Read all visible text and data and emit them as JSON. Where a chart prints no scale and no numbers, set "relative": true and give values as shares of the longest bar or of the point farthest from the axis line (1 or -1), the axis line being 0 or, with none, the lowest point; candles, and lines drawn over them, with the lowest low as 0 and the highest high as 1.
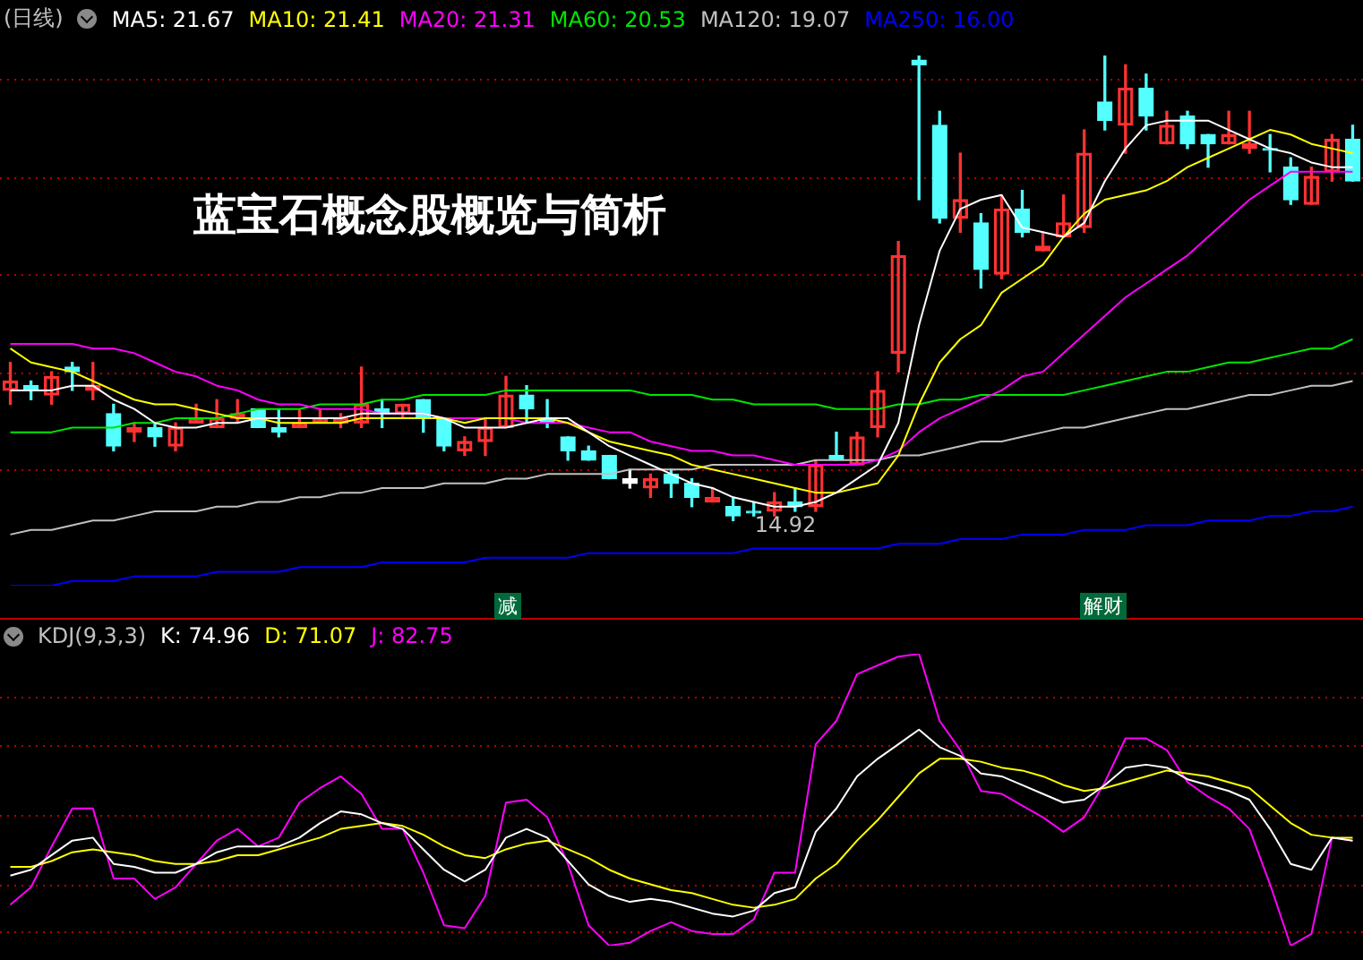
{
  "chart_data": [
    {
      "type": "candlestick",
      "title": "蓝宝石概念股概览与简析",
      "subtitle": "(日线)",
      "relative": true,
      "legend": "top left",
      "categories": [
        null,
        null,
        null,
        null,
        null,
        null,
        null,
        null,
        null,
        null,
        null,
        null,
        null,
        null,
        null,
        null,
        null,
        null,
        null,
        null,
        null,
        null,
        null,
        null,
        null,
        null,
        null,
        null,
        null,
        null,
        null,
        null,
        null,
        null,
        null,
        null,
        null,
        null,
        null,
        null,
        null,
        null,
        null,
        null,
        null,
        null,
        null,
        null,
        null,
        null,
        null,
        null,
        null,
        null,
        null,
        null,
        null,
        null,
        null,
        null,
        null,
        null,
        null,
        null,
        null,
        null
      ],
      "ohlc": [
        [
          0.28,
          0.34,
          0.25,
          0.3
        ],
        [
          0.29,
          0.3,
          0.26,
          0.28
        ],
        [
          0.27,
          0.32,
          0.25,
          0.31
        ],
        [
          0.33,
          0.34,
          0.28,
          0.32
        ],
        [
          0.28,
          0.34,
          0.26,
          0.29
        ],
        [
          0.23,
          0.25,
          0.15,
          0.16
        ],
        [
          0.19,
          0.21,
          0.17,
          0.2
        ],
        [
          0.2,
          0.21,
          0.16,
          0.18
        ],
        [
          0.16,
          0.21,
          0.15,
          0.2
        ],
        [
          0.21,
          0.25,
          0.21,
          0.22
        ],
        [
          0.2,
          0.26,
          0.2,
          0.22
        ],
        [
          0.22,
          0.26,
          0.21,
          0.23
        ],
        [
          0.24,
          0.24,
          0.2,
          0.2
        ],
        [
          0.2,
          0.24,
          0.18,
          0.19
        ],
        [
          0.2,
          0.24,
          0.2,
          0.21
        ],
        [
          0.21,
          0.24,
          0.21,
          0.22
        ],
        [
          0.21,
          0.23,
          0.2,
          0.22
        ],
        [
          0.21,
          0.33,
          0.2,
          0.25
        ],
        [
          0.24,
          0.26,
          0.2,
          0.23
        ],
        [
          0.23,
          0.25,
          0.22,
          0.25
        ],
        [
          0.26,
          0.26,
          0.19,
          0.22
        ],
        [
          0.22,
          0.22,
          0.15,
          0.16
        ],
        [
          0.15,
          0.18,
          0.14,
          0.17
        ],
        [
          0.17,
          0.22,
          0.14,
          0.2
        ],
        [
          0.2,
          0.31,
          0.2,
          0.27
        ],
        [
          0.27,
          0.29,
          0.21,
          0.24
        ],
        [
          0.22,
          0.26,
          0.2,
          0.21
        ],
        [
          0.18,
          0.18,
          0.13,
          0.15
        ],
        [
          0.15,
          0.16,
          0.13,
          0.13
        ],
        [
          0.14,
          0.14,
          0.09,
          0.09
        ],
        [
          0.09,
          0.11,
          0.07,
          0.08
        ],
        [
          0.07,
          0.1,
          0.05,
          0.09
        ],
        [
          0.1,
          0.11,
          0.05,
          0.08
        ],
        [
          0.08,
          0.09,
          0.03,
          0.05
        ],
        [
          0.04,
          0.07,
          0.04,
          0.05
        ],
        [
          0.03,
          0.05,
          0,
          0.01
        ],
        [
          0.02,
          0.04,
          0.01,
          0.02
        ],
        [
          0.02,
          0.06,
          0.01,
          0.04
        ],
        [
          0.04,
          0.07,
          0.02,
          0.03
        ],
        [
          0.03,
          0.13,
          0.02,
          0.12
        ],
        [
          0.14,
          0.19,
          0.13,
          0.13
        ],
        [
          0.12,
          0.19,
          0.12,
          0.18
        ],
        [
          0.2,
          0.32,
          0.18,
          0.28
        ],
        [
          0.36,
          0.6,
          0.32,
          0.57
        ],
        [
          0.99,
          1,
          0.69,
          0.98
        ],
        [
          0.85,
          0.88,
          0.64,
          0.65
        ],
        [
          0.65,
          0.79,
          0.62,
          0.69
        ],
        [
          0.64,
          0.66,
          0.5,
          0.54
        ],
        [
          0.53,
          0.7,
          0.52,
          0.67
        ],
        [
          0.67,
          0.71,
          0.61,
          0.62
        ],
        [
          0.58,
          0.62,
          0.58,
          0.59
        ],
        [
          0.61,
          0.7,
          0.61,
          0.64
        ],
        [
          0.63,
          0.84,
          0.62,
          0.79
        ],
        [
          0.9,
          1,
          0.84,
          0.86
        ],
        [
          0.85,
          0.98,
          0.79,
          0.93
        ],
        [
          0.93,
          0.96,
          0.84,
          0.87
        ],
        [
          0.81,
          0.88,
          0.81,
          0.85
        ],
        [
          0.87,
          0.88,
          0.8,
          0.81
        ],
        [
          0.83,
          0.83,
          0.76,
          0.81
        ],
        [
          0.81,
          0.88,
          0.81,
          0.83
        ],
        [
          0.8,
          0.88,
          0.79,
          0.81
        ],
        [
          0.8,
          0.83,
          0.75,
          0.8
        ],
        [
          0.76,
          0.78,
          0.68,
          0.69
        ],
        [
          0.68,
          0.76,
          0.68,
          0.74
        ],
        [
          0.75,
          0.83,
          0.73,
          0.82
        ],
        [
          0.82,
          0.85,
          0.73,
          0.73
        ]
      ],
      "colors": [
        "#ff3232",
        "#54ffff",
        "#ff3232",
        "#54ffff",
        "#ff3232",
        "#54ffff",
        "#ff3232",
        "#54ffff",
        "#ff3232",
        "#ff3232",
        "#ff3232",
        "#ff3232",
        "#54ffff",
        "#54ffff",
        "#ff3232",
        "#ff3232",
        "#ff3232",
        "#ff3232",
        "#54ffff",
        "#ff3232",
        "#54ffff",
        "#54ffff",
        "#ff3232",
        "#ff3232",
        "#ff3232",
        "#54ffff",
        "#54ffff",
        "#54ffff",
        "#54ffff",
        "#54ffff",
        "#ffffff",
        "#ff3232",
        "#54ffff",
        "#54ffff",
        "#ff3232",
        "#54ffff",
        "#54ffff",
        "#ff3232",
        "#54ffff",
        "#ff3232",
        "#54ffff",
        "#ff3232",
        "#ff3232",
        "#ff3232",
        "#54ffff",
        "#54ffff",
        "#ff3232",
        "#54ffff",
        "#ff3232",
        "#54ffff",
        "#ff3232",
        "#ff3232",
        "#ff3232",
        "#54ffff",
        "#ff3232",
        "#54ffff",
        "#ff3232",
        "#54ffff",
        "#54ffff",
        "#ff3232",
        "#ff3232",
        "#54ffff",
        "#54ffff",
        "#ff3232",
        "#ff3232",
        "#54ffff"
      ],
      "series": [
        {
          "type": "line",
          "name": "MA5: 21.67",
          "color": "#ffffff",
          "values": [
            0.28,
            0.28,
            0.28,
            0.29,
            0.29,
            0.26,
            0.24,
            0.21,
            0.2,
            0.2,
            0.21,
            0.21,
            0.22,
            0.22,
            0.22,
            0.22,
            0.22,
            0.23,
            0.23,
            0.23,
            0.23,
            0.22,
            0.2,
            0.2,
            0.2,
            0.21,
            0.22,
            0.22,
            0.19,
            0.16,
            0.14,
            0.12,
            0.1,
            0.08,
            0.07,
            0.05,
            0.04,
            0.03,
            0.03,
            0.04,
            0.06,
            0.09,
            0.12,
            0.21,
            0.42,
            0.58,
            0.67,
            0.69,
            0.7,
            0.63,
            0.62,
            0.61,
            0.64,
            0.73,
            0.8,
            0.85,
            0.86,
            0.86,
            0.86,
            0.84,
            0.82,
            0.8,
            0.79,
            0.77,
            0.76,
            0.76
          ]
        },
        {
          "type": "line",
          "name": "MA10: 21.41",
          "color": "#ffff00",
          "values": [
            0.37,
            0.34,
            0.33,
            0.32,
            0.3,
            0.28,
            0.26,
            0.25,
            0.25,
            0.24,
            0.23,
            0.22,
            0.22,
            0.21,
            0.21,
            0.21,
            0.21,
            0.22,
            0.22,
            0.22,
            0.22,
            0.22,
            0.21,
            0.22,
            0.22,
            0.22,
            0.22,
            0.21,
            0.19,
            0.17,
            0.16,
            0.15,
            0.14,
            0.12,
            0.11,
            0.1,
            0.09,
            0.08,
            0.07,
            0.06,
            0.06,
            0.07,
            0.08,
            0.14,
            0.25,
            0.34,
            0.39,
            0.42,
            0.49,
            0.52,
            0.55,
            0.61,
            0.66,
            0.69,
            0.7,
            0.71,
            0.73,
            0.76,
            0.78,
            0.8,
            0.82,
            0.84,
            0.83,
            0.81,
            0.8,
            0.79
          ]
        },
        {
          "type": "line",
          "name": "MA20: 21.31",
          "color": "#ff00ff",
          "values": [
            0.38,
            0.38,
            0.38,
            0.38,
            0.37,
            0.37,
            0.36,
            0.34,
            0.32,
            0.31,
            0.29,
            0.28,
            0.26,
            0.25,
            0.25,
            0.24,
            0.24,
            0.24,
            0.23,
            0.23,
            0.23,
            0.22,
            0.22,
            0.22,
            0.22,
            0.21,
            0.21,
            0.21,
            0.2,
            0.19,
            0.19,
            0.17,
            0.16,
            0.15,
            0.15,
            0.14,
            0.14,
            0.13,
            0.12,
            0.12,
            0.12,
            0.12,
            0.13,
            0.15,
            0.19,
            0.22,
            0.24,
            0.26,
            0.28,
            0.31,
            0.32,
            0.36,
            0.4,
            0.44,
            0.48,
            0.51,
            0.54,
            0.57,
            0.61,
            0.65,
            0.69,
            0.72,
            0.75,
            0.75,
            0.75,
            0.75
          ]
        },
        {
          "type": "line",
          "name": "MA60: 20.53",
          "color": "#00e600",
          "values": [
            0.19,
            0.19,
            0.19,
            0.2,
            0.2,
            0.2,
            0.21,
            0.21,
            0.22,
            0.22,
            0.22,
            0.23,
            0.24,
            0.24,
            0.24,
            0.25,
            0.25,
            0.25,
            0.26,
            0.26,
            0.27,
            0.27,
            0.27,
            0.27,
            0.28,
            0.28,
            0.28,
            0.28,
            0.28,
            0.28,
            0.28,
            0.27,
            0.27,
            0.27,
            0.26,
            0.26,
            0.25,
            0.25,
            0.25,
            0.25,
            0.24,
            0.24,
            0.24,
            0.25,
            0.25,
            0.26,
            0.26,
            0.27,
            0.27,
            0.27,
            0.27,
            0.27,
            0.28,
            0.29,
            0.3,
            0.31,
            0.32,
            0.32,
            0.33,
            0.34,
            0.34,
            0.35,
            0.36,
            0.37,
            0.37,
            0.39
          ]
        },
        {
          "type": "line",
          "name": "MA120: 19.07",
          "color": "#c0c0c0",
          "values": [
            -0.03,
            -0.02,
            -0.02,
            -0.01,
            0.0,
            0.0,
            0.01,
            0.02,
            0.02,
            0.02,
            0.03,
            0.03,
            0.04,
            0.04,
            0.05,
            0.05,
            0.06,
            0.06,
            0.07,
            0.07,
            0.07,
            0.08,
            0.08,
            0.08,
            0.09,
            0.09,
            0.1,
            0.1,
            0.1,
            0.1,
            0.11,
            0.11,
            0.11,
            0.11,
            0.12,
            0.12,
            0.12,
            0.12,
            0.12,
            0.13,
            0.13,
            0.13,
            0.13,
            0.14,
            0.14,
            0.15,
            0.16,
            0.17,
            0.17,
            0.18,
            0.19,
            0.2,
            0.2,
            0.21,
            0.22,
            0.23,
            0.24,
            0.24,
            0.25,
            0.26,
            0.27,
            0.27,
            0.28,
            0.29,
            0.29,
            0.3
          ]
        },
        {
          "type": "line",
          "name": "MA250: 16.00",
          "color": "#0000ff",
          "values": [
            -0.14,
            -0.14,
            -0.14,
            -0.13,
            -0.13,
            -0.13,
            -0.12,
            -0.12,
            -0.12,
            -0.12,
            -0.11,
            -0.11,
            -0.11,
            -0.11,
            -0.1,
            -0.1,
            -0.1,
            -0.1,
            -0.09,
            -0.09,
            -0.09,
            -0.09,
            -0.09,
            -0.08,
            -0.08,
            -0.08,
            -0.08,
            -0.08,
            -0.07,
            -0.07,
            -0.07,
            -0.07,
            -0.07,
            -0.07,
            -0.07,
            -0.07,
            -0.06,
            -0.06,
            -0.06,
            -0.06,
            -0.06,
            -0.06,
            -0.06,
            -0.05,
            -0.05,
            -0.05,
            -0.04,
            -0.04,
            -0.04,
            -0.03,
            -0.03,
            -0.03,
            -0.02,
            -0.02,
            -0.02,
            -0.01,
            -0.01,
            -0.01,
            0.0,
            0.0,
            0.0,
            0.01,
            0.01,
            0.02,
            0.02,
            0.03
          ]
        }
      ],
      "ref_lines": [
        {
          "axis": "y",
          "value": 0.95,
          "color": "#b40000",
          "line_style": "dotted"
        },
        {
          "axis": "y",
          "value": 0.74,
          "color": "#b40000",
          "line_style": "dotted"
        },
        {
          "axis": "y",
          "value": 0.53,
          "color": "#b40000",
          "line_style": "dotted"
        },
        {
          "axis": "y",
          "value": 0.32,
          "color": "#b40000",
          "line_style": "dotted"
        },
        {
          "axis": "y",
          "value": 0.11,
          "color": "#b40000",
          "line_style": "dotted"
        }
      ],
      "annotations": [
        "14.92",
        "减",
        "解财"
      ]
    },
    {
      "type": "line",
      "title": "KDJ(9,3,3)",
      "relative": true,
      "legend": "top left",
      "categories": [
        null,
        null,
        null,
        null,
        null,
        null,
        null,
        null,
        null,
        null,
        null,
        null,
        null,
        null,
        null,
        null,
        null,
        null,
        null,
        null,
        null,
        null,
        null,
        null,
        null,
        null,
        null,
        null,
        null,
        null,
        null,
        null,
        null,
        null,
        null,
        null,
        null,
        null,
        null,
        null,
        null,
        null,
        null,
        null,
        null,
        null,
        null,
        null,
        null,
        null,
        null,
        null,
        null,
        null,
        null,
        null,
        null,
        null,
        null,
        null,
        null,
        null,
        null,
        null,
        null,
        null
      ],
      "series": [
        {
          "name": "K: 74.96",
          "color": "#ffffff",
          "values": [
            0.24,
            0.26,
            0.31,
            0.36,
            0.37,
            0.28,
            0.27,
            0.25,
            0.25,
            0.28,
            0.32,
            0.34,
            0.34,
            0.34,
            0.37,
            0.42,
            0.46,
            0.45,
            0.42,
            0.4,
            0.33,
            0.26,
            0.22,
            0.26,
            0.37,
            0.4,
            0.37,
            0.29,
            0.21,
            0.17,
            0.15,
            0.16,
            0.15,
            0.13,
            0.11,
            0.1,
            0.12,
            0.18,
            0.2,
            0.39,
            0.47,
            0.58,
            0.64,
            0.69,
            0.74,
            0.68,
            0.65,
            0.59,
            0.58,
            0.55,
            0.52,
            0.49,
            0.5,
            0.55,
            0.61,
            0.62,
            0.61,
            0.57,
            0.55,
            0.53,
            0.5,
            0.4,
            0.28,
            0.26,
            0.37,
            0.36
          ]
        },
        {
          "name": "D: 71.07",
          "color": "#ffff00",
          "values": [
            0.27,
            0.27,
            0.29,
            0.32,
            0.33,
            0.32,
            0.31,
            0.29,
            0.28,
            0.28,
            0.29,
            0.31,
            0.31,
            0.33,
            0.35,
            0.37,
            0.4,
            0.41,
            0.42,
            0.41,
            0.38,
            0.34,
            0.31,
            0.3,
            0.33,
            0.35,
            0.36,
            0.33,
            0.3,
            0.26,
            0.23,
            0.21,
            0.19,
            0.18,
            0.16,
            0.14,
            0.13,
            0.14,
            0.16,
            0.23,
            0.28,
            0.36,
            0.43,
            0.51,
            0.59,
            0.64,
            0.64,
            0.63,
            0.61,
            0.6,
            0.58,
            0.55,
            0.53,
            0.54,
            0.56,
            0.58,
            0.6,
            0.59,
            0.58,
            0.56,
            0.54,
            0.48,
            0.42,
            0.38,
            0.37,
            0.37
          ]
        },
        {
          "name": "J: 82.75",
          "color": "#ff00ff",
          "values": [
            0.14,
            0.2,
            0.34,
            0.47,
            0.47,
            0.23,
            0.23,
            0.16,
            0.2,
            0.28,
            0.36,
            0.4,
            0.34,
            0.37,
            0.49,
            0.54,
            0.58,
            0.52,
            0.4,
            0.4,
            0.25,
            0.07,
            0.06,
            0.17,
            0.49,
            0.5,
            0.44,
            0.28,
            0.07,
            0,
            0.01,
            0.05,
            0.08,
            0.05,
            0.04,
            0.04,
            0.09,
            0.25,
            0.25,
            0.69,
            0.77,
            0.93,
            0.96,
            0.99,
            1,
            0.77,
            0.67,
            0.53,
            0.52,
            0.48,
            0.44,
            0.39,
            0.44,
            0.56,
            0.71,
            0.71,
            0.67,
            0.56,
            0.51,
            0.47,
            0.4,
            0.21,
            0,
            0.04,
            0.37,
            0.36
          ]
        }
      ],
      "ref_lines": [
        {
          "axis": "y",
          "value": 0.85,
          "color": "#b40000",
          "line_style": "dotted"
        },
        {
          "axis": "y",
          "value": 0.69,
          "color": "#b40000",
          "line_style": "dotted"
        },
        {
          "axis": "y",
          "value": 0.45,
          "color": "#b40000",
          "line_style": "dotted"
        },
        {
          "axis": "y",
          "value": 0.21,
          "color": "#b40000",
          "line_style": "dotted"
        },
        {
          "axis": "y",
          "value": 0.05,
          "color": "#b40000",
          "line_style": "dotted"
        }
      ]
    }
  ]
}
